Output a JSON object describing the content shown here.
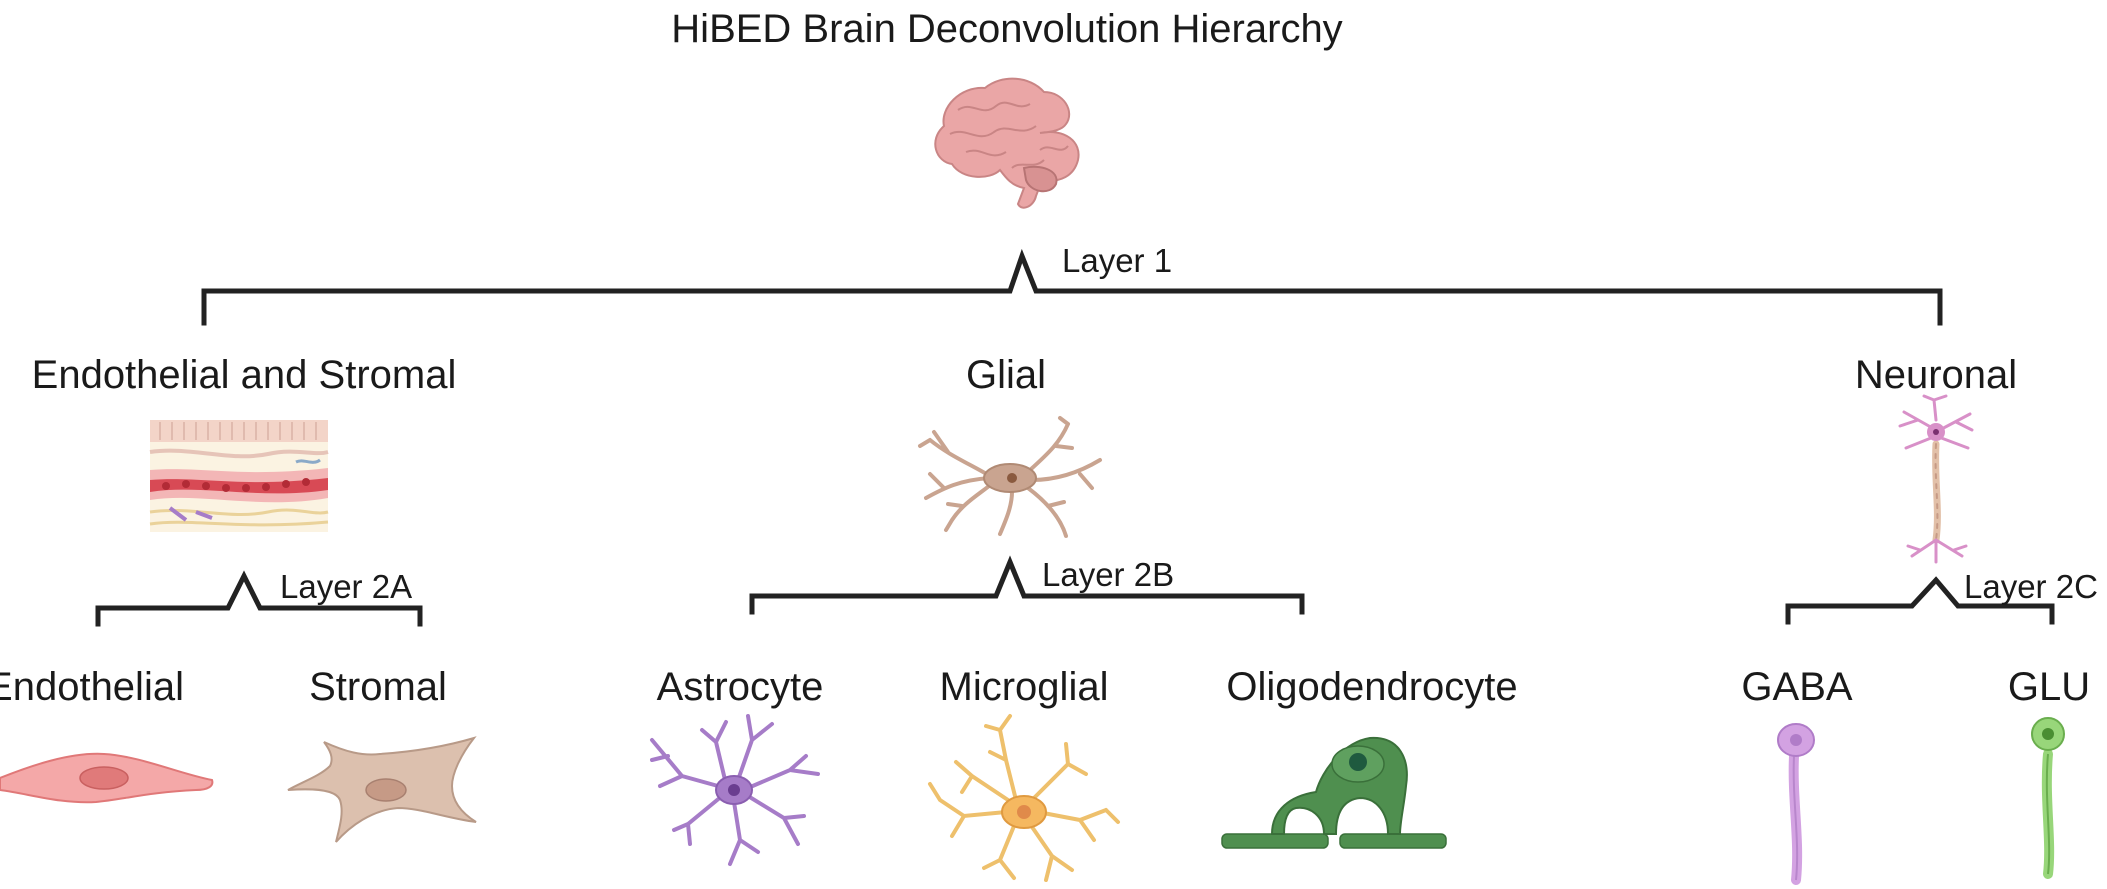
{
  "title": "HiBED Brain Deconvolution Hierarchy",
  "layers": {
    "l1": "Layer 1",
    "l2a": "Layer 2A",
    "l2b": "Layer 2B",
    "l2c": "Layer 2C"
  },
  "level1": {
    "endo_stromal": "Endothelial and Stromal",
    "glial": "Glial",
    "neuronal": "Neuronal"
  },
  "level2": {
    "endothelial": "Endothelial",
    "stromal": "Stromal",
    "astrocyte": "Astrocyte",
    "microglial": "Microglial",
    "oligodendrocyte": "Oligodendrocyte",
    "gaba": "GABA",
    "glu": "GLU"
  },
  "icons": {
    "brain": "brain-icon",
    "tissue": "vessel-tissue-icon",
    "glial": "glial-cell-icon",
    "neuron": "neuron-icon",
    "endothelial": "endothelial-cell-icon",
    "stromal": "stromal-cell-icon",
    "astrocyte": "astrocyte-icon",
    "microglia": "microglia-icon",
    "oligodendrocyte": "oligodendrocyte-icon",
    "gaba": "gaba-neuron-icon",
    "glu": "glu-neuron-icon"
  },
  "colors": {
    "brain": "#e8a3a3",
    "endothelial": "#f2a1a1",
    "stromal": "#d8b8a6",
    "glial": "#c9a490",
    "astrocyte": "#a67cc8",
    "microglia": "#f0c070",
    "oligodendrocyte": "#4f8f4f",
    "gaba": "#cf9ee0",
    "glu": "#8fcf6f",
    "neuron": "#d890c8"
  }
}
